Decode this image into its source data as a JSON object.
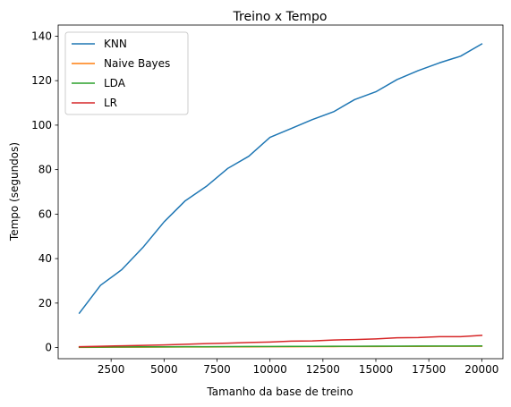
{
  "chart_data": {
    "type": "line",
    "title": "Treino x Tempo",
    "xlabel": "Tamanho da base de treino",
    "ylabel": "Tempo (segundos)",
    "xlim": [
      0,
      21000
    ],
    "ylim": [
      -5,
      145
    ],
    "xticks": [
      2500,
      5000,
      7500,
      10000,
      12500,
      15000,
      17500,
      20000
    ],
    "yticks": [
      0,
      20,
      40,
      60,
      80,
      100,
      120,
      140
    ],
    "grid": false,
    "legend_position": "top-left",
    "x": [
      1000,
      2000,
      3000,
      4000,
      5000,
      6000,
      7000,
      8000,
      9000,
      10000,
      11000,
      12000,
      13000,
      14000,
      15000,
      16000,
      17000,
      18000,
      19000,
      20000
    ],
    "series": [
      {
        "name": "KNN",
        "color": "#1f77b4",
        "values": [
          15.5,
          28,
          35,
          45,
          56.5,
          66,
          72.5,
          80.5,
          86,
          94.5,
          98.5,
          102.5,
          106,
          111.5,
          115,
          120.5,
          124.5,
          128,
          131,
          136.5
        ]
      },
      {
        "name": "Naive Bayes",
        "color": "#ff7f0e",
        "values": [
          0.1,
          0.15,
          0.2,
          0.2,
          0.25,
          0.3,
          0.3,
          0.35,
          0.35,
          0.4,
          0.4,
          0.45,
          0.45,
          0.5,
          0.5,
          0.55,
          0.55,
          0.6,
          0.6,
          0.6
        ]
      },
      {
        "name": "LDA",
        "color": "#2ca02c",
        "values": [
          0.2,
          0.25,
          0.3,
          0.35,
          0.35,
          0.4,
          0.4,
          0.45,
          0.5,
          0.5,
          0.55,
          0.55,
          0.6,
          0.6,
          0.65,
          0.65,
          0.7,
          0.7,
          0.7,
          0.75
        ]
      },
      {
        "name": "LR",
        "color": "#d62728",
        "values": [
          0.4,
          0.6,
          0.8,
          1.0,
          1.2,
          1.5,
          1.8,
          2.0,
          2.3,
          2.5,
          2.9,
          3.0,
          3.4,
          3.6,
          3.9,
          4.4,
          4.5,
          4.9,
          4.9,
          5.5
        ]
      }
    ]
  }
}
